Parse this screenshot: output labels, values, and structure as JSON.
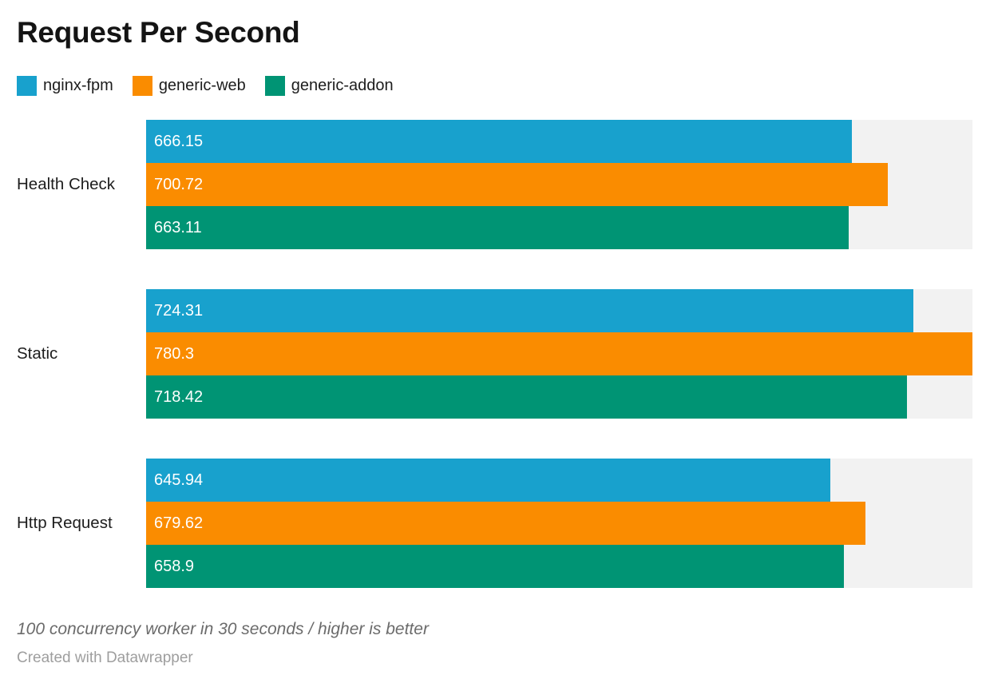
{
  "title": "Request Per Second",
  "legend": {
    "items": [
      {
        "label": "nginx-fpm",
        "color": "#18a1cd"
      },
      {
        "label": "generic-web",
        "color": "#fa8c00"
      },
      {
        "label": "generic-addon",
        "color": "#009474"
      }
    ]
  },
  "chart_data": {
    "type": "bar",
    "orientation": "horizontal",
    "title": "Request Per Second",
    "xlabel": "",
    "ylabel": "",
    "grid": false,
    "legend_position": "top",
    "categories": [
      "Health Check",
      "Static",
      "Http Request"
    ],
    "series": [
      {
        "name": "nginx-fpm",
        "color": "#18a1cd",
        "values": [
          666.15,
          724.31,
          645.94
        ],
        "labels": [
          "666.15",
          "724.31",
          "645.94"
        ]
      },
      {
        "name": "generic-web",
        "color": "#fa8c00",
        "values": [
          700.72,
          780.3,
          679.62
        ],
        "labels": [
          "700.72",
          "780.3",
          "679.62"
        ]
      },
      {
        "name": "generic-addon",
        "color": "#009474",
        "values": [
          663.11,
          718.42,
          658.9
        ],
        "labels": [
          "663.11",
          "718.42",
          "658.9"
        ]
      }
    ],
    "value_axis_max": 780.3,
    "track_color": "#f2f2f2"
  },
  "footer": {
    "notes": "100 concurrency worker in 30 seconds / higher is better",
    "attribution": "Created with Datawrapper"
  }
}
